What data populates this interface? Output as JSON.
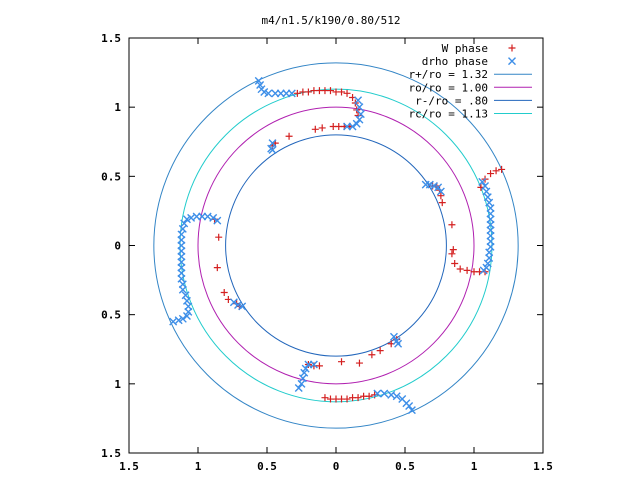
{
  "chart_data": {
    "type": "scatter",
    "title": "m4/n1.5/k190/0.80/512",
    "xlim": [
      -1.5,
      1.5
    ],
    "ylim": [
      -1.5,
      1.5
    ],
    "x_ticks": [
      -1.5,
      -1,
      -0.5,
      0,
      0.5,
      1,
      1.5
    ],
    "y_ticks": [
      -1.5,
      -1,
      -0.5,
      0,
      0.5,
      1,
      1.5
    ],
    "x_tick_labels": [
      "1.5",
      "1",
      "0.5",
      "0",
      "0.5",
      "1",
      "1.5"
    ],
    "y_tick_labels": [
      "1.5",
      "1",
      "0.5",
      "0",
      "0.5",
      "1",
      "1.5"
    ],
    "grid": false,
    "legend_position": "top-right",
    "circles": [
      {
        "name": "r+/ro = 1.32",
        "radius": 1.32,
        "color": "#3385c6"
      },
      {
        "name": "ro/ro = 1.00",
        "radius": 1.0,
        "color": "#b020b0"
      },
      {
        "name": "r-/ro = .80",
        "radius": 0.8,
        "color": "#2266bb"
      },
      {
        "name": "rc/ro = 1.13",
        "radius": 1.13,
        "color": "#22cccc"
      }
    ],
    "series": [
      {
        "name": "W phase",
        "marker": "plus",
        "color": "#d42020",
        "points": [
          [
            -0.28,
            1.1
          ],
          [
            -0.24,
            1.11
          ],
          [
            -0.2,
            1.11
          ],
          [
            -0.16,
            1.12
          ],
          [
            -0.12,
            1.12
          ],
          [
            -0.08,
            1.12
          ],
          [
            -0.04,
            1.12
          ],
          [
            0.0,
            1.11
          ],
          [
            0.04,
            1.11
          ],
          [
            0.08,
            1.1
          ],
          [
            0.12,
            1.07
          ],
          [
            0.14,
            1.03
          ],
          [
            0.15,
            0.98
          ],
          [
            0.16,
            0.94
          ],
          [
            -0.15,
            0.84
          ],
          [
            -0.1,
            0.85
          ],
          [
            -0.02,
            0.86
          ],
          [
            0.02,
            0.86
          ],
          [
            0.06,
            0.86
          ],
          [
            0.1,
            0.86
          ],
          [
            -0.34,
            0.79
          ],
          [
            -0.44,
            0.74
          ],
          [
            -0.46,
            0.72
          ],
          [
            0.7,
            0.43
          ],
          [
            0.73,
            0.43
          ],
          [
            0.75,
            0.4
          ],
          [
            0.76,
            0.36
          ],
          [
            0.77,
            0.31
          ],
          [
            0.84,
            0.15
          ],
          [
            0.85,
            -0.03
          ],
          [
            0.84,
            -0.06
          ],
          [
            0.86,
            -0.13
          ],
          [
            0.9,
            -0.17
          ],
          [
            0.95,
            -0.18
          ],
          [
            1.0,
            -0.19
          ],
          [
            1.04,
            -0.19
          ],
          [
            1.08,
            -0.19
          ],
          [
            1.05,
            0.42
          ],
          [
            1.08,
            0.48
          ],
          [
            1.12,
            0.52
          ],
          [
            1.16,
            0.54
          ],
          [
            1.2,
            0.55
          ],
          [
            -0.88,
            0.19
          ],
          [
            -0.85,
            0.06
          ],
          [
            -0.86,
            -0.16
          ],
          [
            -0.81,
            -0.34
          ],
          [
            -0.78,
            -0.39
          ],
          [
            -0.72,
            -0.42
          ],
          [
            -0.7,
            -0.44
          ],
          [
            0.04,
            -0.84
          ],
          [
            0.17,
            -0.85
          ],
          [
            0.26,
            -0.79
          ],
          [
            0.32,
            -0.76
          ],
          [
            0.4,
            -0.71
          ],
          [
            0.44,
            -0.68
          ],
          [
            -0.2,
            -0.86
          ],
          [
            -0.16,
            -0.87
          ],
          [
            -0.12,
            -0.87
          ],
          [
            -0.08,
            -1.1
          ],
          [
            -0.04,
            -1.11
          ],
          [
            0.0,
            -1.11
          ],
          [
            0.04,
            -1.11
          ],
          [
            0.08,
            -1.11
          ],
          [
            0.12,
            -1.1
          ],
          [
            0.16,
            -1.1
          ],
          [
            0.2,
            -1.09
          ],
          [
            0.24,
            -1.09
          ],
          [
            0.28,
            -1.08
          ]
        ]
      },
      {
        "name": "drho phase",
        "marker": "cross",
        "color": "#3e8fe8",
        "points": [
          [
            -0.56,
            1.19
          ],
          [
            -0.55,
            1.16
          ],
          [
            -0.54,
            1.13
          ],
          [
            -0.52,
            1.11
          ],
          [
            -0.49,
            1.1
          ],
          [
            -0.44,
            1.1
          ],
          [
            -0.4,
            1.1
          ],
          [
            -0.36,
            1.1
          ],
          [
            -0.32,
            1.1
          ],
          [
            0.16,
            1.05
          ],
          [
            0.17,
            1.0
          ],
          [
            0.18,
            0.95
          ],
          [
            0.17,
            0.91
          ],
          [
            0.15,
            0.88
          ],
          [
            0.12,
            0.86
          ],
          [
            0.08,
            0.86
          ],
          [
            -0.46,
            0.74
          ],
          [
            -0.47,
            0.7
          ],
          [
            -0.46,
            0.69
          ],
          [
            0.65,
            0.44
          ],
          [
            0.68,
            0.44
          ],
          [
            0.71,
            0.43
          ],
          [
            0.74,
            0.42
          ],
          [
            0.76,
            0.39
          ],
          [
            1.06,
            0.46
          ],
          [
            1.08,
            0.43
          ],
          [
            1.09,
            0.39
          ],
          [
            1.1,
            0.35
          ],
          [
            1.11,
            0.31
          ],
          [
            1.12,
            0.27
          ],
          [
            1.12,
            0.23
          ],
          [
            1.12,
            0.19
          ],
          [
            1.12,
            0.15
          ],
          [
            1.12,
            0.11
          ],
          [
            1.12,
            0.07
          ],
          [
            1.12,
            0.03
          ],
          [
            1.12,
            -0.01
          ],
          [
            1.11,
            -0.05
          ],
          [
            1.11,
            -0.09
          ],
          [
            1.1,
            -0.13
          ],
          [
            1.09,
            -0.16
          ],
          [
            1.07,
            -0.18
          ],
          [
            -1.18,
            -0.55
          ],
          [
            -1.14,
            -0.54
          ],
          [
            -1.11,
            -0.53
          ],
          [
            -1.08,
            -0.51
          ],
          [
            -1.07,
            -0.48
          ],
          [
            -1.07,
            -0.44
          ],
          [
            -1.08,
            -0.4
          ],
          [
            -1.09,
            -0.36
          ],
          [
            -1.11,
            -0.32
          ],
          [
            -1.11,
            -0.28
          ],
          [
            -1.12,
            -0.24
          ],
          [
            -1.12,
            -0.2
          ],
          [
            -1.12,
            -0.16
          ],
          [
            -1.12,
            -0.12
          ],
          [
            -1.12,
            -0.08
          ],
          [
            -1.12,
            -0.04
          ],
          [
            -1.12,
            0.0
          ],
          [
            -1.12,
            0.04
          ],
          [
            -1.12,
            0.08
          ],
          [
            -1.11,
            0.12
          ],
          [
            -1.1,
            0.16
          ],
          [
            -1.08,
            0.19
          ],
          [
            -1.05,
            0.2
          ],
          [
            -1.01,
            0.21
          ],
          [
            -0.97,
            0.21
          ],
          [
            -0.93,
            0.21
          ],
          [
            -0.89,
            0.2
          ],
          [
            -0.86,
            0.18
          ],
          [
            -0.74,
            -0.41
          ],
          [
            -0.71,
            -0.43
          ],
          [
            -0.68,
            -0.44
          ],
          [
            0.42,
            -0.66
          ],
          [
            0.44,
            -0.69
          ],
          [
            0.45,
            -0.71
          ],
          [
            -0.27,
            -1.03
          ],
          [
            -0.25,
            -1.0
          ],
          [
            -0.24,
            -0.96
          ],
          [
            -0.23,
            -0.92
          ],
          [
            -0.22,
            -0.89
          ],
          [
            -0.2,
            -0.86
          ],
          [
            -0.16,
            -0.86
          ],
          [
            0.3,
            -1.07
          ],
          [
            0.35,
            -1.07
          ],
          [
            0.4,
            -1.08
          ],
          [
            0.44,
            -1.09
          ],
          [
            0.48,
            -1.11
          ],
          [
            0.51,
            -1.14
          ],
          [
            0.53,
            -1.16
          ],
          [
            0.55,
            -1.19
          ]
        ]
      }
    ]
  }
}
